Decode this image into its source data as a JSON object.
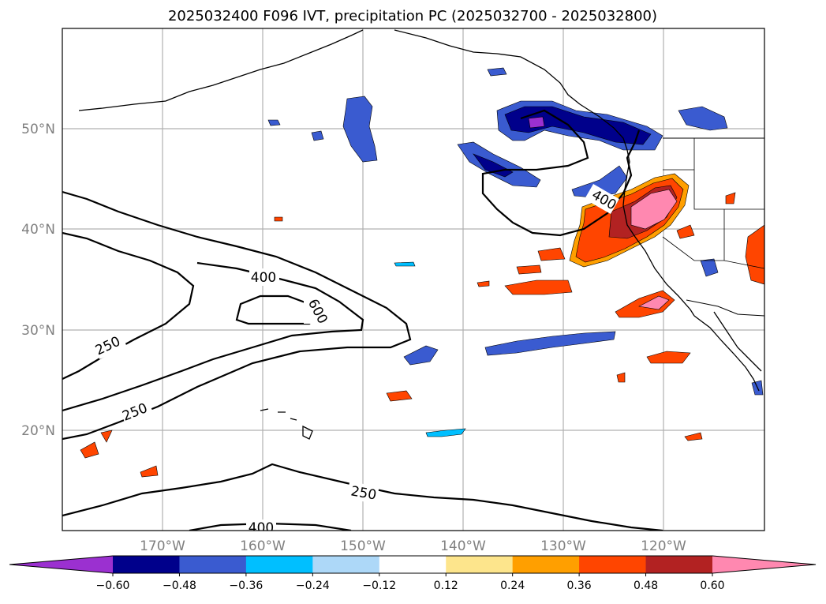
{
  "title": "2025032400 F096 IVT, precipitation PC (2025032700 - 2025032800)",
  "map": {
    "lat_labels": [
      "50°N",
      "40°N",
      "30°N",
      "20°N"
    ],
    "lon_labels": [
      "170°W",
      "160°W",
      "150°W",
      "140°W",
      "130°W",
      "120°W"
    ],
    "ivt_contour_labels": [
      "400",
      "600",
      "250",
      "250",
      "250",
      "400",
      "400"
    ]
  },
  "colorbar": {
    "ticks": [
      "−0.60",
      "−0.48",
      "−0.36",
      "−0.24",
      "−0.12",
      "0.12",
      "0.24",
      "0.36",
      "0.48",
      "0.60"
    ],
    "colors": [
      "#9b30d0",
      "#00008b",
      "#3a5bd0",
      "#00bfff",
      "#add8f8",
      "#ffffff",
      "#fde58c",
      "#ff9f00",
      "#ff4500",
      "#b22222",
      "#ff88b0"
    ]
  }
}
